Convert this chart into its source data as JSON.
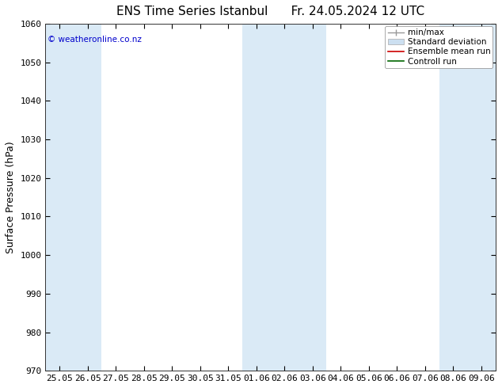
{
  "title": "ENS Time Series Istanbul",
  "title2": "Fr. 24.05.2024 12 UTC",
  "ylabel": "Surface Pressure (hPa)",
  "ylim": [
    970,
    1060
  ],
  "yticks": [
    970,
    980,
    990,
    1000,
    1010,
    1020,
    1030,
    1040,
    1050,
    1060
  ],
  "xtick_labels": [
    "25.05",
    "26.05",
    "27.05",
    "28.05",
    "29.05",
    "30.05",
    "31.05",
    "01.06",
    "02.06",
    "03.06",
    "04.06",
    "05.06",
    "06.06",
    "07.06",
    "08.06",
    "09.06"
  ],
  "shaded_indices": [
    0,
    1,
    7,
    8,
    9,
    14,
    15
  ],
  "band_color": "#daeaf6",
  "background_color": "#ffffff",
  "copyright_text": "© weatheronline.co.nz",
  "copyright_color": "#0000cc",
  "title_fontsize": 11,
  "tick_fontsize": 8,
  "ylabel_fontsize": 9,
  "legend_fontsize": 7.5
}
